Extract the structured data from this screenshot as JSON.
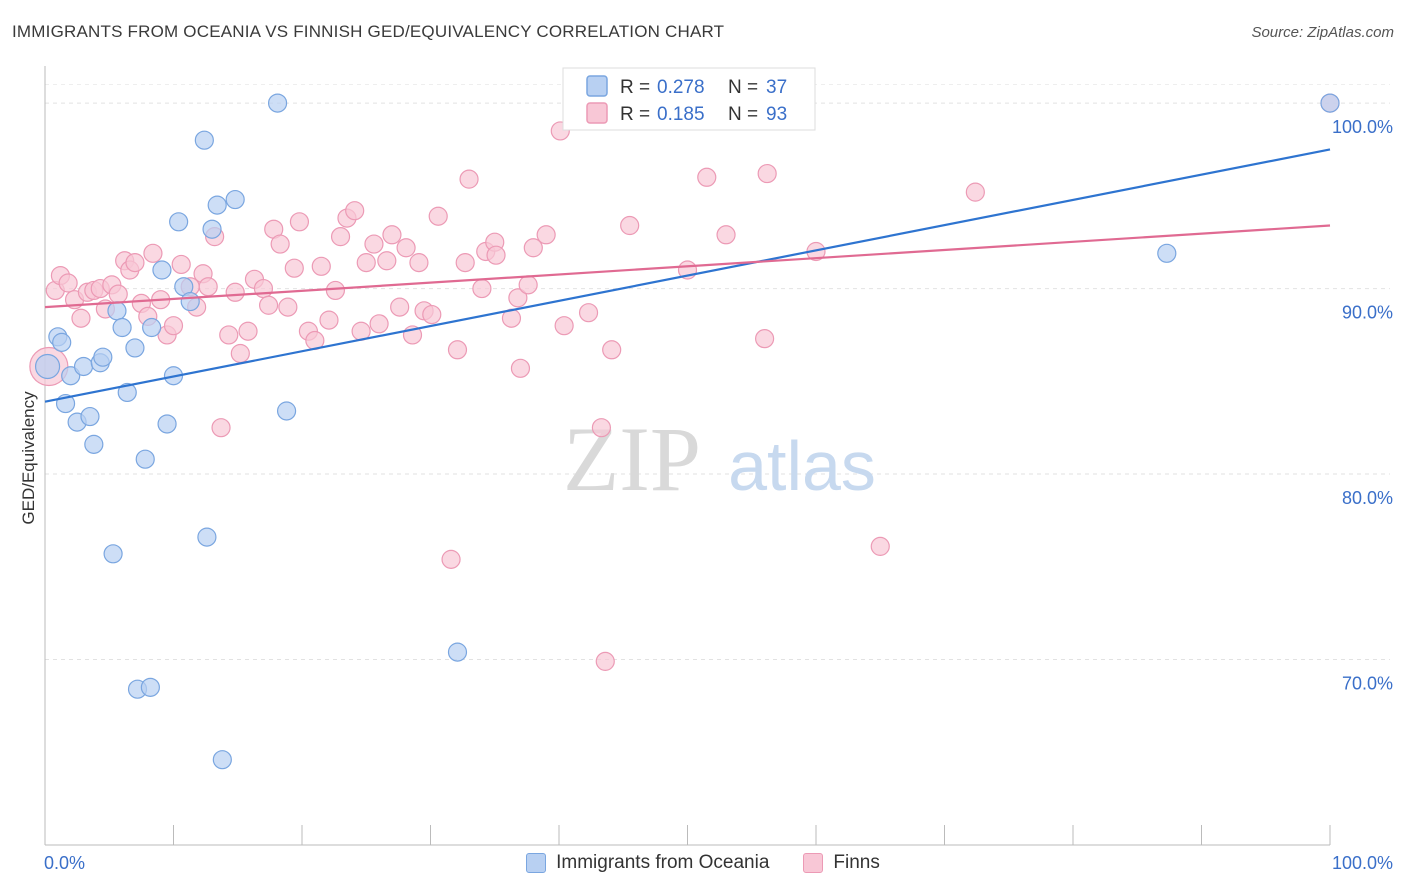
{
  "header": {
    "title": "IMMIGRANTS FROM OCEANIA VS FINNISH GED/EQUIVALENCY CORRELATION CHART",
    "source": "Source: ZipAtlas.com"
  },
  "watermark": {
    "zip": "ZIP",
    "atlas": "atlas"
  },
  "colors": {
    "blue_fill": "#b8d0f2",
    "blue_stroke": "#7aa6e0",
    "blue_line": "#2e74d0",
    "pink_fill": "#f8c7d6",
    "pink_stroke": "#ec9ab5",
    "pink_line": "#e06a92",
    "value_text": "#3a6fc9"
  },
  "legend_top": [
    {
      "r_label": "R =",
      "r_value": "0.278",
      "n_label": "N =",
      "n_value": "37"
    },
    {
      "r_label": "R =",
      "r_value": "0.185",
      "n_label": "N =",
      "n_value": "93"
    }
  ],
  "chart_data": {
    "type": "scatter",
    "title": "IMMIGRANTS FROM OCEANIA VS FINNISH GED/EQUIVALENCY CORRELATION CHART",
    "xlabel": "",
    "ylabel": "GED/Equivalency",
    "xlim": [
      0,
      100
    ],
    "ylim": [
      60,
      102
    ],
    "x_tick_labels": [
      "0.0%",
      "100.0%"
    ],
    "y_ticks": [
      70,
      80,
      90,
      100
    ],
    "y_tick_labels": [
      "70.0%",
      "80.0%",
      "90.0%",
      "100.0%"
    ],
    "grid": true,
    "legend_placement": "top-center",
    "series": [
      {
        "name": "Immigrants from Oceania",
        "r": 0.278,
        "n": 37,
        "trend": [
          [
            0,
            83.9
          ],
          [
            100,
            97.5
          ]
        ],
        "points": [
          [
            0.2,
            85.8
          ],
          [
            1.0,
            87.4
          ],
          [
            1.3,
            87.1
          ],
          [
            1.6,
            83.8
          ],
          [
            2.0,
            85.3
          ],
          [
            2.5,
            82.8
          ],
          [
            3.0,
            85.8
          ],
          [
            3.5,
            83.1
          ],
          [
            3.8,
            81.6
          ],
          [
            4.3,
            86.0
          ],
          [
            4.5,
            86.3
          ],
          [
            5.3,
            75.7
          ],
          [
            5.6,
            88.8
          ],
          [
            6.0,
            87.9
          ],
          [
            6.4,
            84.4
          ],
          [
            7.0,
            86.8
          ],
          [
            7.2,
            68.4
          ],
          [
            7.8,
            80.8
          ],
          [
            8.2,
            68.5
          ],
          [
            8.3,
            87.9
          ],
          [
            9.1,
            91.0
          ],
          [
            9.5,
            82.7
          ],
          [
            10.0,
            85.3
          ],
          [
            10.4,
            93.6
          ],
          [
            10.8,
            90.1
          ],
          [
            11.3,
            89.3
          ],
          [
            12.4,
            98.0
          ],
          [
            12.6,
            76.6
          ],
          [
            13.0,
            93.2
          ],
          [
            13.4,
            94.5
          ],
          [
            13.8,
            64.6
          ],
          [
            14.8,
            94.8
          ],
          [
            18.1,
            100.0
          ],
          [
            18.8,
            83.4
          ],
          [
            32.1,
            70.4
          ],
          [
            87.3,
            91.9
          ],
          [
            100.0,
            100.0
          ]
        ]
      },
      {
        "name": "Finns",
        "r": 0.185,
        "n": 93,
        "trend": [
          [
            0,
            89.0
          ],
          [
            100,
            93.4
          ]
        ],
        "points": [
          [
            0.3,
            85.8
          ],
          [
            0.8,
            89.9
          ],
          [
            1.2,
            90.7
          ],
          [
            1.8,
            90.3
          ],
          [
            2.3,
            89.4
          ],
          [
            2.8,
            88.4
          ],
          [
            3.3,
            89.8
          ],
          [
            3.8,
            89.9
          ],
          [
            4.3,
            90.0
          ],
          [
            4.7,
            88.9
          ],
          [
            5.2,
            90.2
          ],
          [
            5.7,
            89.7
          ],
          [
            6.2,
            91.5
          ],
          [
            6.6,
            91.0
          ],
          [
            7.0,
            91.4
          ],
          [
            7.5,
            89.2
          ],
          [
            8.0,
            88.5
          ],
          [
            8.4,
            91.9
          ],
          [
            9.0,
            89.4
          ],
          [
            9.5,
            87.5
          ],
          [
            10.0,
            88.0
          ],
          [
            10.6,
            91.3
          ],
          [
            11.3,
            90.1
          ],
          [
            11.8,
            89.0
          ],
          [
            12.3,
            90.8
          ],
          [
            12.7,
            90.1
          ],
          [
            13.2,
            92.8
          ],
          [
            13.7,
            82.5
          ],
          [
            14.3,
            87.5
          ],
          [
            14.8,
            89.8
          ],
          [
            15.2,
            86.5
          ],
          [
            15.8,
            87.7
          ],
          [
            16.3,
            90.5
          ],
          [
            17.0,
            90.0
          ],
          [
            17.4,
            89.1
          ],
          [
            17.8,
            93.2
          ],
          [
            18.3,
            92.4
          ],
          [
            18.9,
            89.0
          ],
          [
            19.4,
            91.1
          ],
          [
            19.8,
            93.6
          ],
          [
            20.5,
            87.7
          ],
          [
            21.0,
            87.2
          ],
          [
            21.5,
            91.2
          ],
          [
            22.1,
            88.3
          ],
          [
            22.6,
            89.9
          ],
          [
            23.0,
            92.8
          ],
          [
            23.5,
            93.8
          ],
          [
            24.1,
            94.2
          ],
          [
            24.6,
            87.7
          ],
          [
            25.0,
            91.4
          ],
          [
            25.6,
            92.4
          ],
          [
            26.0,
            88.1
          ],
          [
            26.6,
            91.5
          ],
          [
            27.0,
            92.9
          ],
          [
            27.6,
            89.0
          ],
          [
            28.1,
            92.2
          ],
          [
            28.6,
            87.5
          ],
          [
            29.1,
            91.4
          ],
          [
            29.5,
            88.8
          ],
          [
            30.1,
            88.6
          ],
          [
            30.6,
            93.9
          ],
          [
            31.6,
            75.4
          ],
          [
            32.1,
            86.7
          ],
          [
            32.7,
            91.4
          ],
          [
            33.0,
            95.9
          ],
          [
            34.0,
            90.0
          ],
          [
            34.3,
            92.0
          ],
          [
            35.0,
            92.5
          ],
          [
            35.1,
            91.8
          ],
          [
            36.3,
            88.4
          ],
          [
            36.8,
            89.5
          ],
          [
            37.0,
            85.7
          ],
          [
            37.6,
            90.2
          ],
          [
            38.0,
            92.2
          ],
          [
            39.0,
            92.9
          ],
          [
            40.1,
            98.5
          ],
          [
            40.4,
            88.0
          ],
          [
            42.3,
            88.7
          ],
          [
            43.3,
            82.5
          ],
          [
            43.6,
            69.9
          ],
          [
            44.1,
            86.7
          ],
          [
            45.5,
            93.4
          ],
          [
            50.0,
            91.0
          ],
          [
            51.5,
            96.0
          ],
          [
            53.0,
            92.9
          ],
          [
            55.0,
            100.0
          ],
          [
            56.0,
            87.3
          ],
          [
            56.2,
            96.2
          ],
          [
            57.8,
            100.0
          ],
          [
            60.0,
            92.0
          ],
          [
            65.0,
            76.1
          ],
          [
            72.4,
            95.2
          ],
          [
            100.0,
            100.0
          ]
        ]
      }
    ]
  }
}
